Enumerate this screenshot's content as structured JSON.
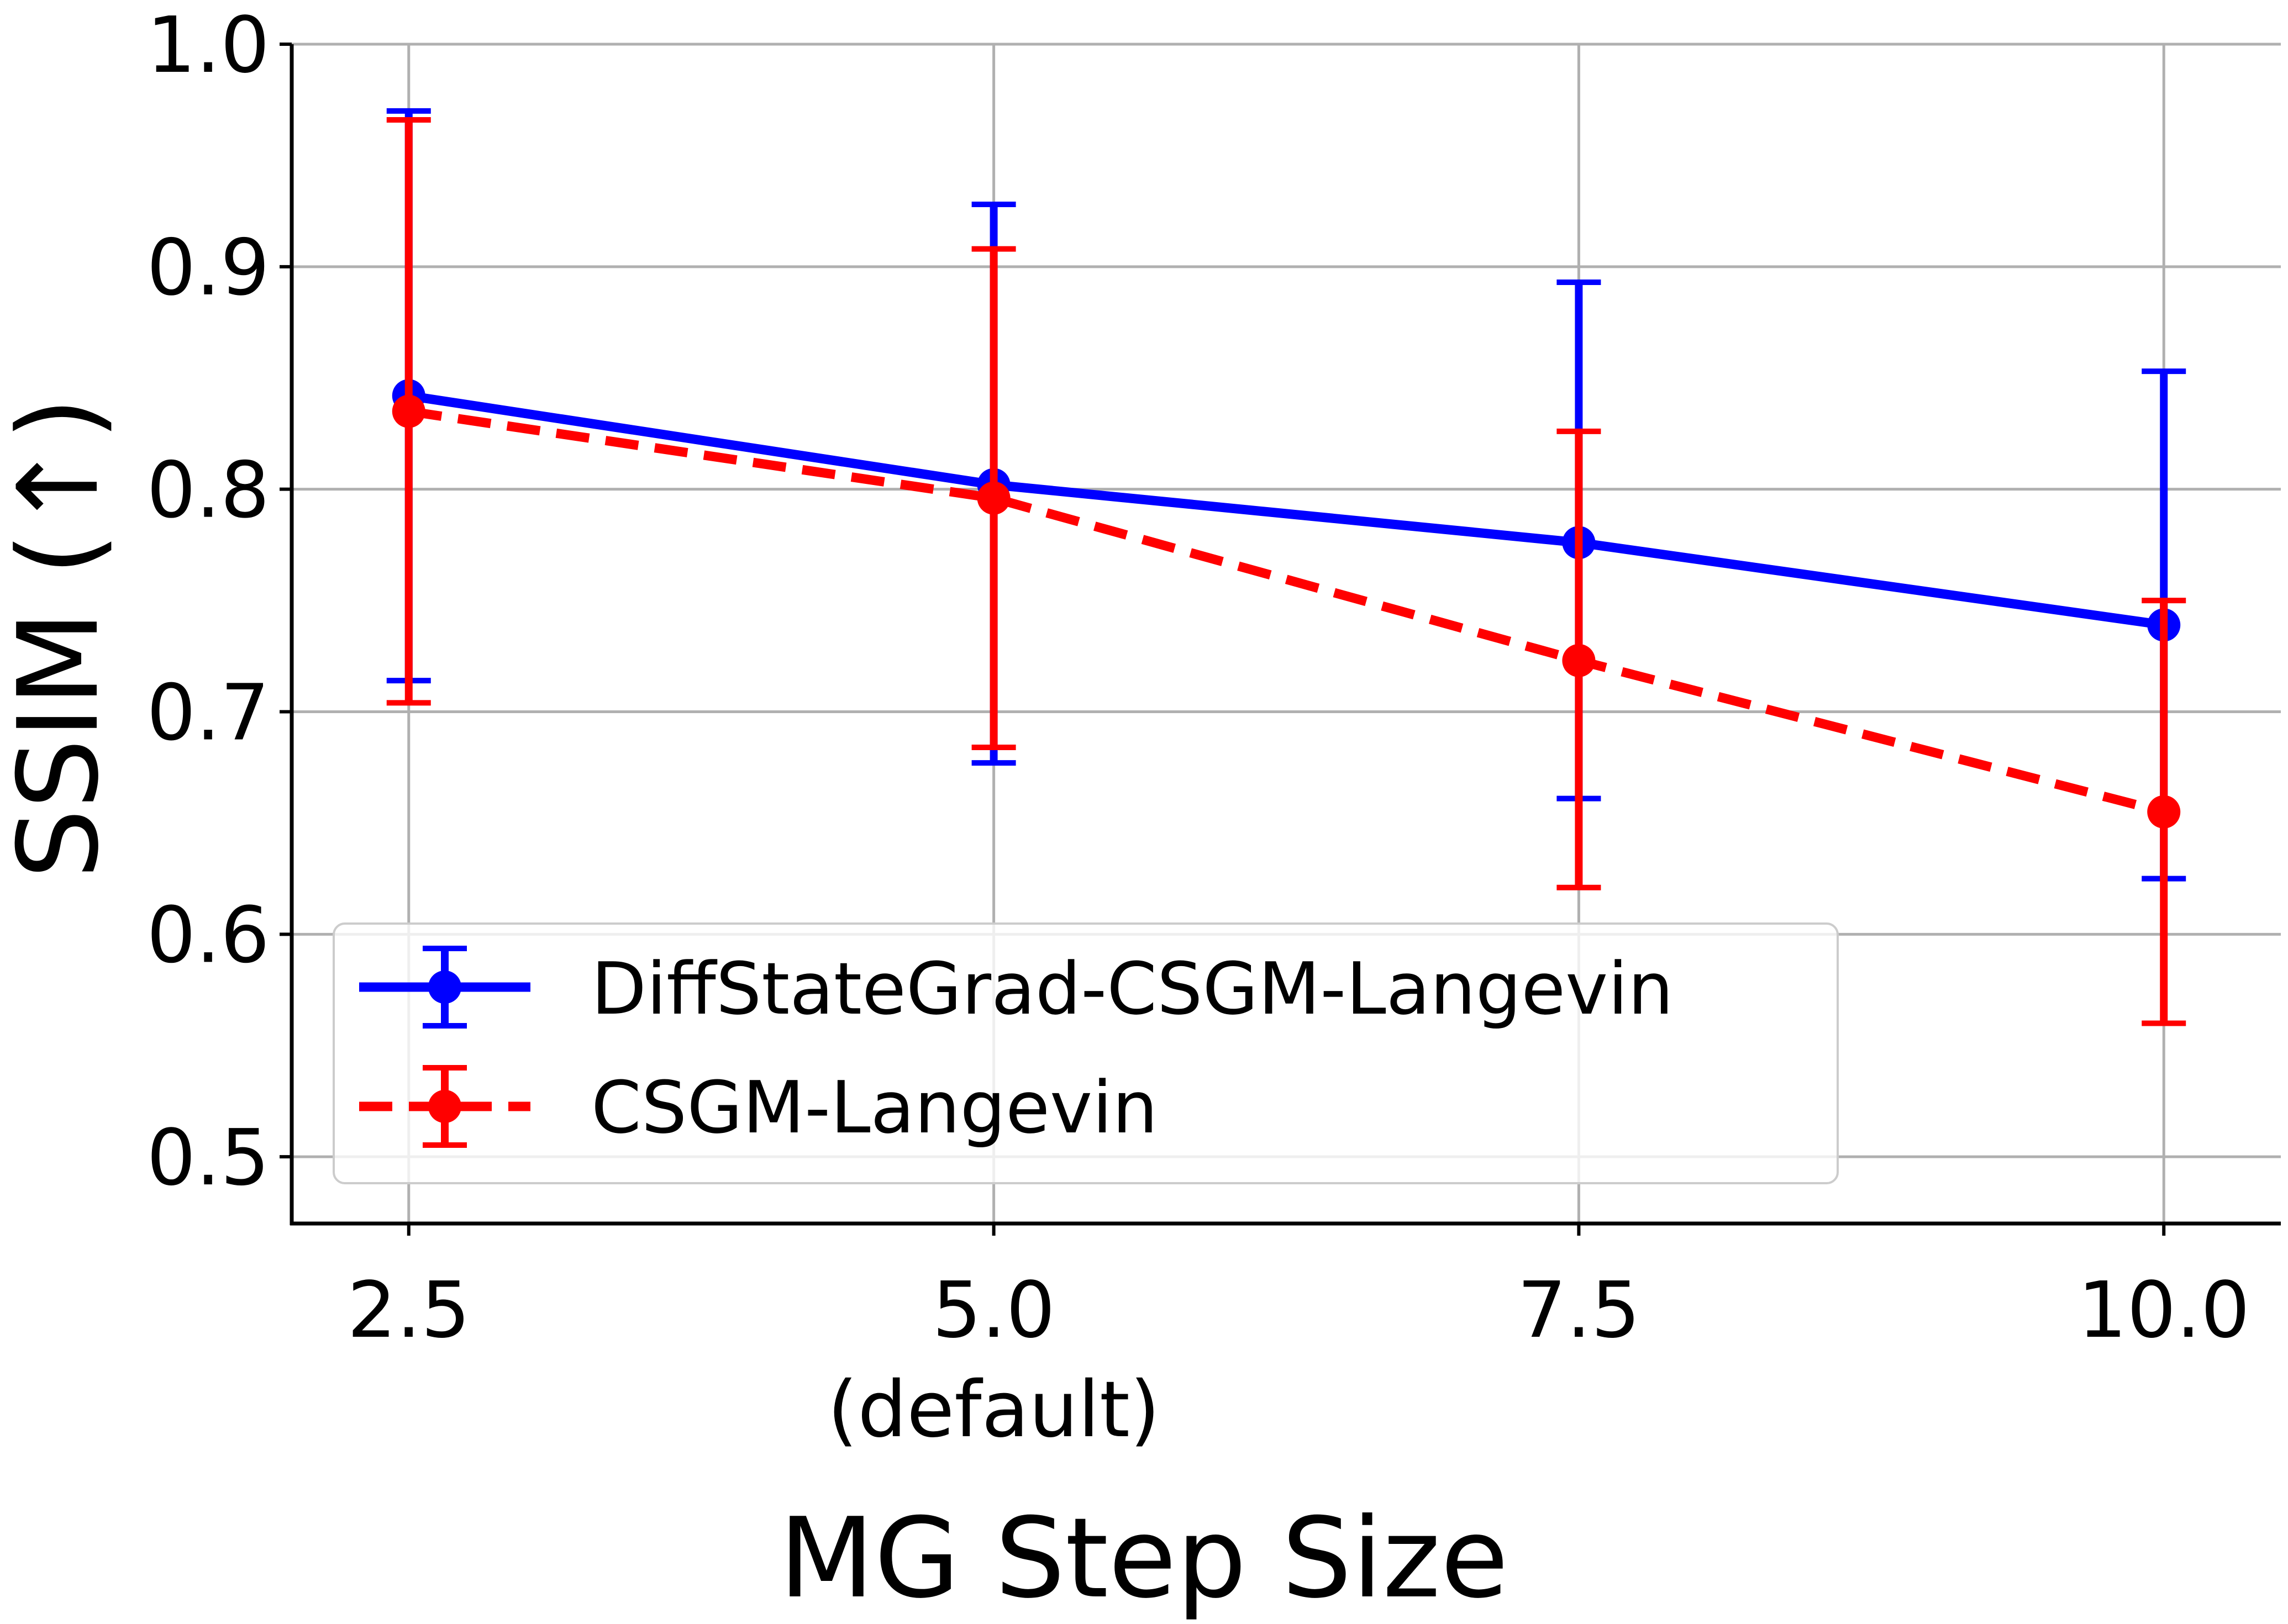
{
  "chart_data": {
    "type": "line",
    "title": "",
    "xlabel": "MG Step Size",
    "ylabel": "SSIM (↑)",
    "x": [
      2.5,
      5.0,
      7.5,
      10.0
    ],
    "x_tick_labels": [
      "2.5",
      "5.0",
      "7.5",
      "10.0"
    ],
    "x_tick_sublabel": "(default)",
    "y_tick_labels": [
      "0.5",
      "0.6",
      "0.7",
      "0.8",
      "0.9",
      "1.0"
    ],
    "y_ticks": [
      0.5,
      0.6,
      0.7,
      0.8,
      0.9,
      1.0
    ],
    "xlim": [
      2.0,
      10.5
    ],
    "ylim": [
      0.47,
      1.0
    ],
    "grid": true,
    "legend_position": "lower-left",
    "series": [
      {
        "name": "DiffStateGrad-CSGM-Langevin",
        "color": "#0000ff",
        "style": "solid",
        "values": [
          0.842,
          0.802,
          0.776,
          0.739
        ],
        "err_low": [
          0.714,
          0.677,
          0.661,
          0.625
        ],
        "err_high": [
          0.97,
          0.928,
          0.893,
          0.853
        ]
      },
      {
        "name": "CSGM-Langevin",
        "color": "#ff0000",
        "style": "dashed",
        "values": [
          0.835,
          0.796,
          0.723,
          0.655
        ],
        "err_low": [
          0.704,
          0.684,
          0.621,
          0.56
        ],
        "err_high": [
          0.966,
          0.908,
          0.826,
          0.75
        ]
      }
    ]
  }
}
